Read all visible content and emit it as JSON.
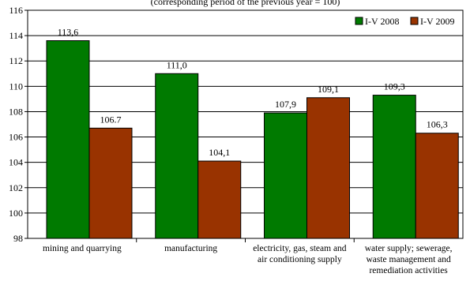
{
  "chart_data": {
    "type": "bar",
    "title": "(corresponding period of the previous year = 100)",
    "categories": [
      [
        "mining and quarrying"
      ],
      [
        "manufacturing"
      ],
      [
        "electricity, gas, steam and",
        "air conditioning supply"
      ],
      [
        "water supply; sewerage,",
        "waste management and",
        "remediation activities"
      ]
    ],
    "series": [
      {
        "name": "I-V 2008",
        "color": "#007a00",
        "values": [
          113.6,
          111.0,
          107.9,
          109.3
        ],
        "labels": [
          "113,6",
          "111,0",
          "107,9",
          "109,3"
        ]
      },
      {
        "name": "I-V 2009",
        "color": "#993300",
        "values": [
          106.7,
          104.1,
          109.1,
          106.3
        ],
        "labels": [
          "106.7",
          "104,1",
          "109,1",
          "106,3"
        ]
      }
    ],
    "ylim": [
      98,
      116
    ],
    "yticks": [
      98,
      100,
      102,
      104,
      106,
      108,
      110,
      112,
      114,
      116
    ],
    "grid": true,
    "legend_position": "top-right"
  }
}
